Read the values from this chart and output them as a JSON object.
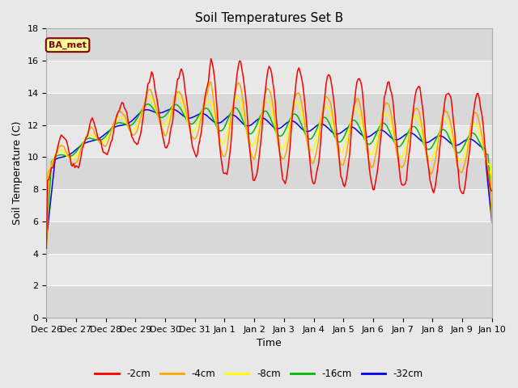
{
  "title": "Soil Temperatures Set B",
  "xlabel": "Time",
  "ylabel": "Soil Temperature (C)",
  "ylim": [
    0,
    18
  ],
  "yticks": [
    0,
    2,
    4,
    6,
    8,
    10,
    12,
    14,
    16,
    18
  ],
  "line_colors": {
    "-2cm": "#ff0000",
    "-4cm": "#ffa500",
    "-8cm": "#ffff00",
    "-16cm": "#00bb00",
    "-32cm": "#0000ee"
  },
  "legend_label": "BA_met",
  "bg_dark": "#d8d8d8",
  "bg_light": "#e8e8e8",
  "fig_bg": "#e8e8e8",
  "tick_fontsize": 8,
  "label_fontsize": 9,
  "title_fontsize": 11,
  "tick_labels": [
    "Dec 26",
    "Dec 27",
    "Dec 28",
    "Dec 29",
    "Dec 30",
    "Dec 31",
    "Jan 1",
    "Jan 2",
    "Jan 3",
    "Jan 4",
    "Jan 5",
    "Jan 6",
    "Jan 7",
    "Jan 8",
    "Jan 9",
    "Jan 10"
  ]
}
